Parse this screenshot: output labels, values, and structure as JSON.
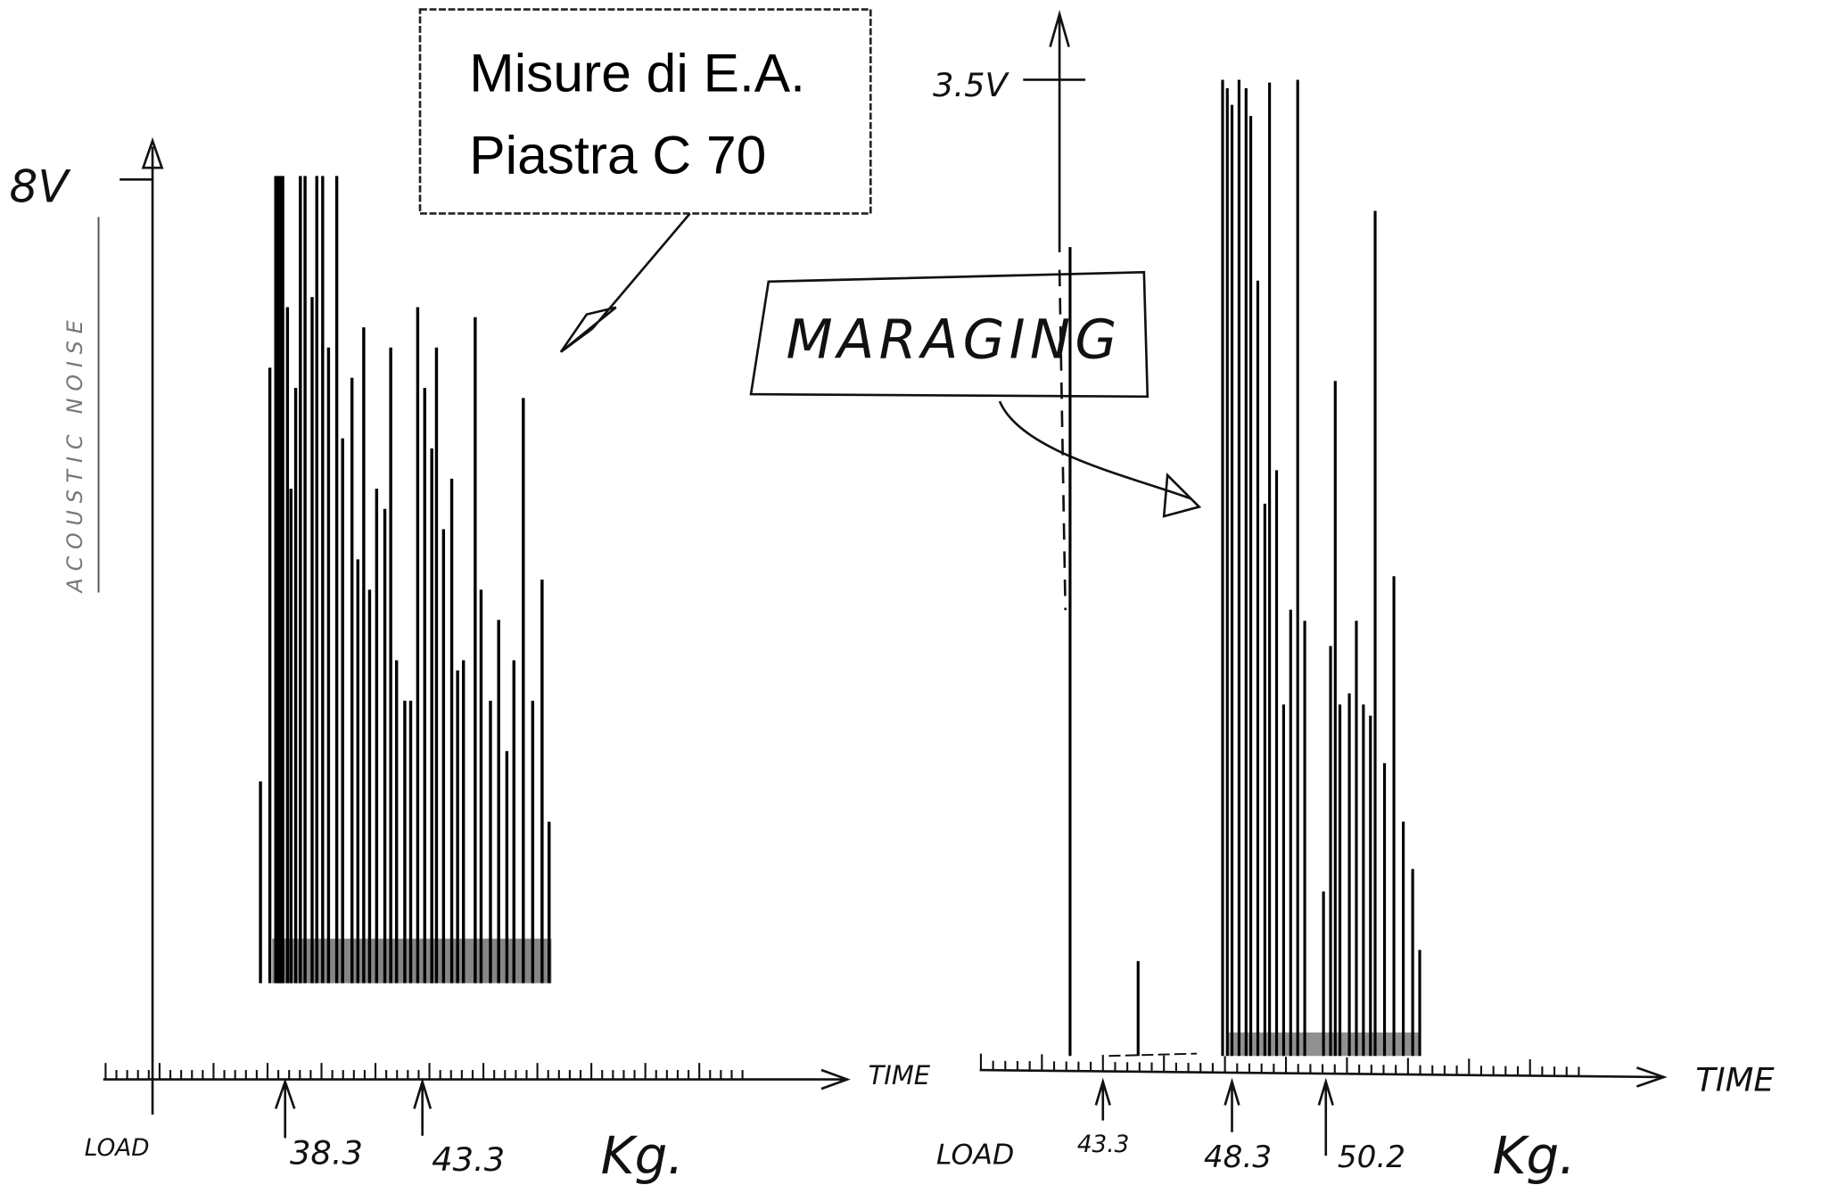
{
  "title_box": {
    "lines": [
      "Misure di E.A.",
      "Piastra  C 70"
    ]
  },
  "panels": [
    {
      "y_max_label": "8V",
      "y_axis_label": "ACOUSTIC NOISE",
      "x_axis_label": "TIME",
      "origin_label": "LOAD",
      "load_markers": [
        "38.3",
        "43.3"
      ],
      "unit": "Kg.",
      "spike_values": [
        2.0,
        6.1,
        8.0,
        8.0,
        8.0,
        8.0,
        6.7,
        4.9,
        5.9,
        8.0,
        8.0,
        6.8,
        8.0,
        8.0,
        6.3,
        8.0,
        5.4,
        6.0,
        4.2,
        6.5,
        3.9,
        4.9,
        4.7,
        6.3,
        3.2,
        2.8,
        2.8,
        6.7,
        5.9,
        5.3,
        6.3,
        4.5,
        5.0,
        3.1,
        3.2,
        6.6,
        3.9,
        2.8,
        3.6,
        2.3,
        3.2,
        5.8,
        2.8,
        4.0,
        1.6
      ]
    },
    {
      "y_max_label": "3.5V",
      "annotation": "MARAGING",
      "x_axis_label": "TIME",
      "origin_label": "LOAD",
      "load_markers": [
        "43.3",
        "48.3",
        "50.2"
      ],
      "unit": "Kg.",
      "spike_values": [
        2.9,
        0.34,
        3.5,
        3.47,
        3.41,
        3.5,
        3.47,
        3.37,
        2.78,
        1.98,
        3.49,
        2.1,
        1.26,
        1.6,
        3.5,
        1.56,
        0.59,
        1.47,
        2.42,
        1.26,
        1.3,
        1.56,
        1.26,
        1.22,
        3.03,
        1.05,
        1.72,
        0.84,
        0.67,
        0.38
      ]
    }
  ]
}
